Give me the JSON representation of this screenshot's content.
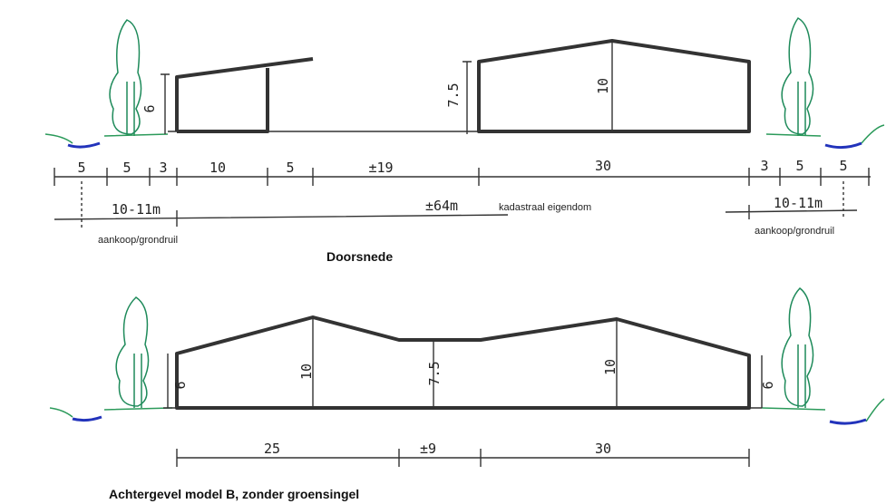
{
  "section_top": {
    "caption": "Doorsnede",
    "heights": [
      "6",
      "7.5",
      "10"
    ],
    "dimensions": [
      "5",
      "5",
      "3",
      "10",
      "5",
      "±19",
      "30",
      "3",
      "5",
      "5"
    ],
    "left_strip": "10-11m",
    "left_note": "aankoop/grondruil",
    "total": "±64m",
    "total_note": "kadastraal eigendom",
    "right_strip": "10-11m",
    "right_note": "aankoop/grondruil"
  },
  "section_bottom": {
    "caption": "Achtergevel model B, zonder groensingel",
    "heights": [
      "6",
      "10",
      "7.5",
      "10",
      "6"
    ],
    "dimensions": [
      "25",
      "±9",
      "30"
    ]
  }
}
